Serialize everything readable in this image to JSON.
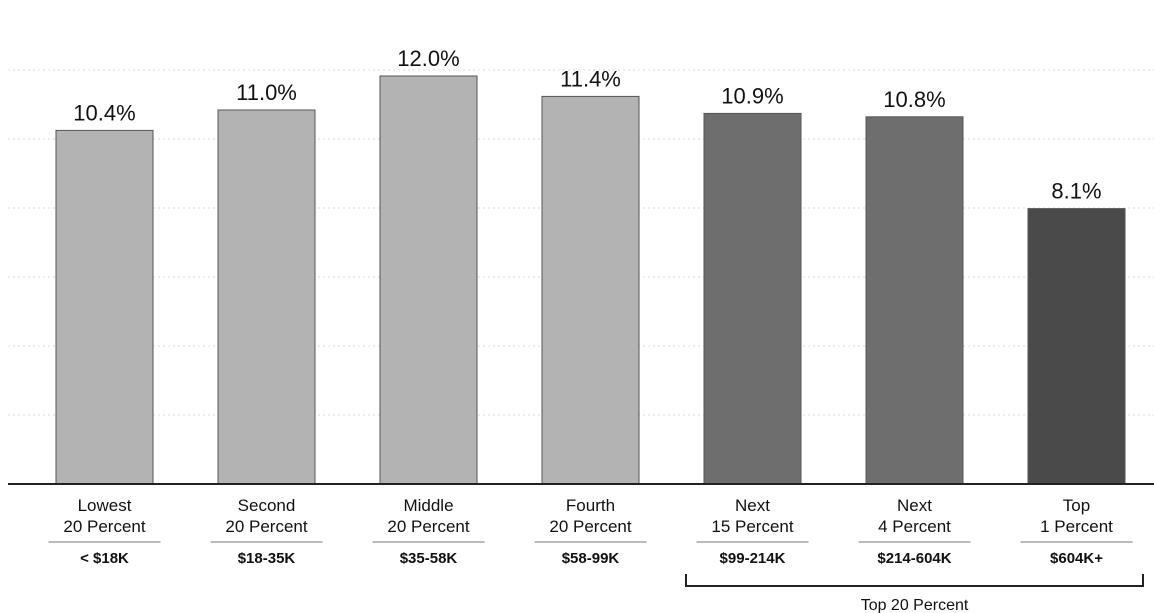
{
  "chart_data": {
    "type": "bar",
    "categories": [
      {
        "line1": "Lowest",
        "line2": "20 Percent",
        "range": "< $18K"
      },
      {
        "line1": "Second",
        "line2": "20 Percent",
        "range": "$18-35K"
      },
      {
        "line1": "Middle",
        "line2": "20 Percent",
        "range": "$35-58K"
      },
      {
        "line1": "Fourth",
        "line2": "20 Percent",
        "range": "$58-99K"
      },
      {
        "line1": "Next",
        "line2": "15 Percent",
        "range": "$99-214K"
      },
      {
        "line1": "Next",
        "line2": "4 Percent",
        "range": "$214-604K"
      },
      {
        "line1": "Top",
        "line2": "1 Percent",
        "range": "$604K+"
      }
    ],
    "values": [
      10.4,
      11.0,
      12.0,
      11.4,
      10.9,
      10.8,
      8.1
    ],
    "value_labels": [
      "10.4%",
      "11.0%",
      "12.0%",
      "11.4%",
      "10.9%",
      "10.8%",
      "8.1%"
    ],
    "bar_colors": [
      "#b3b3b3",
      "#b3b3b3",
      "#b3b3b3",
      "#b3b3b3",
      "#6e6e6e",
      "#6e6e6e",
      "#4a4a4a"
    ],
    "ylim": [
      0,
      12.5
    ],
    "grid": true,
    "group_bracket": {
      "label": "Top 20 Percent",
      "from_index": 4,
      "to_index": 6
    }
  }
}
